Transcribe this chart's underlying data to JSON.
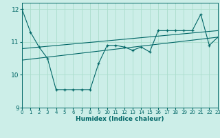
{
  "x": [
    0,
    1,
    2,
    3,
    4,
    5,
    6,
    7,
    8,
    9,
    10,
    11,
    12,
    13,
    14,
    15,
    16,
    17,
    18,
    19,
    20,
    21,
    22,
    23
  ],
  "line1": [
    12.0,
    11.3,
    10.85,
    10.5,
    9.55,
    9.55,
    9.55,
    9.55,
    9.55,
    10.35,
    10.9,
    10.9,
    10.85,
    10.75,
    10.85,
    10.7,
    11.35,
    11.35,
    11.35,
    11.35,
    11.35,
    11.85,
    10.9,
    11.15
  ],
  "line2_x": [
    0,
    23
  ],
  "line2_y": [
    10.45,
    11.15
  ],
  "line3_x": [
    0,
    23
  ],
  "line3_y": [
    10.8,
    11.35
  ],
  "xlim": [
    0,
    23
  ],
  "ylim": [
    9.0,
    12.2
  ],
  "yticks": [
    9,
    10,
    11,
    12
  ],
  "xticks": [
    0,
    1,
    2,
    3,
    4,
    5,
    6,
    7,
    8,
    9,
    10,
    11,
    12,
    13,
    14,
    15,
    16,
    17,
    18,
    19,
    20,
    21,
    22,
    23
  ],
  "xlabel": "Humidex (Indice chaleur)",
  "line_color": "#006666",
  "bg_color": "#cceee8",
  "grid_color": "#aaddcc"
}
